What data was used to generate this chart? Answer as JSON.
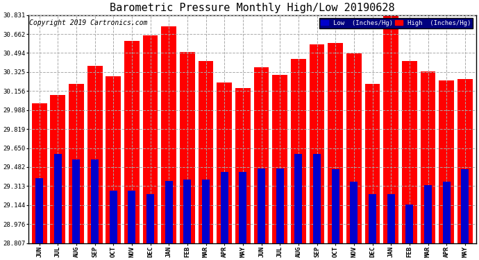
{
  "title": "Barometric Pressure Monthly High/Low 20190628",
  "copyright": "Copyright 2019 Cartronics.com",
  "categories": [
    "JUN",
    "JUL",
    "AUG",
    "SEP",
    "OCT",
    "NOV",
    "DEC",
    "JAN",
    "FEB",
    "MAR",
    "APR",
    "MAY",
    "JUN",
    "JUL",
    "AUG",
    "SEP",
    "OCT",
    "NOV",
    "DEC",
    "JAN",
    "FEB",
    "MAR",
    "APR",
    "MAY"
  ],
  "high_values": [
    30.05,
    30.12,
    30.22,
    30.38,
    30.29,
    30.6,
    30.65,
    30.73,
    30.5,
    30.42,
    30.23,
    30.18,
    30.37,
    30.3,
    30.44,
    30.57,
    30.58,
    30.49,
    30.22,
    30.83,
    30.42,
    30.33,
    30.25,
    30.26
  ],
  "low_values": [
    29.38,
    29.6,
    29.55,
    29.55,
    29.27,
    29.27,
    29.24,
    29.36,
    29.37,
    29.37,
    29.44,
    29.44,
    29.47,
    29.47,
    29.6,
    29.6,
    29.46,
    29.35,
    29.24,
    29.24,
    29.15,
    29.32,
    29.35,
    29.46
  ],
  "high_color": "#ff0000",
  "low_color": "#0000cc",
  "bg_color": "#ffffff",
  "grid_color": "#aaaaaa",
  "title_fontsize": 11,
  "copyright_fontsize": 7,
  "ytick_labels": [
    "28.807",
    "28.976",
    "29.144",
    "29.313",
    "29.482",
    "29.650",
    "29.819",
    "29.988",
    "30.156",
    "30.325",
    "30.494",
    "30.662",
    "30.831"
  ],
  "ytick_values": [
    28.807,
    28.976,
    29.144,
    29.313,
    29.482,
    29.65,
    29.819,
    29.988,
    30.156,
    30.325,
    30.494,
    30.662,
    30.831
  ],
  "ymin": 28.807,
  "ymax": 30.831
}
